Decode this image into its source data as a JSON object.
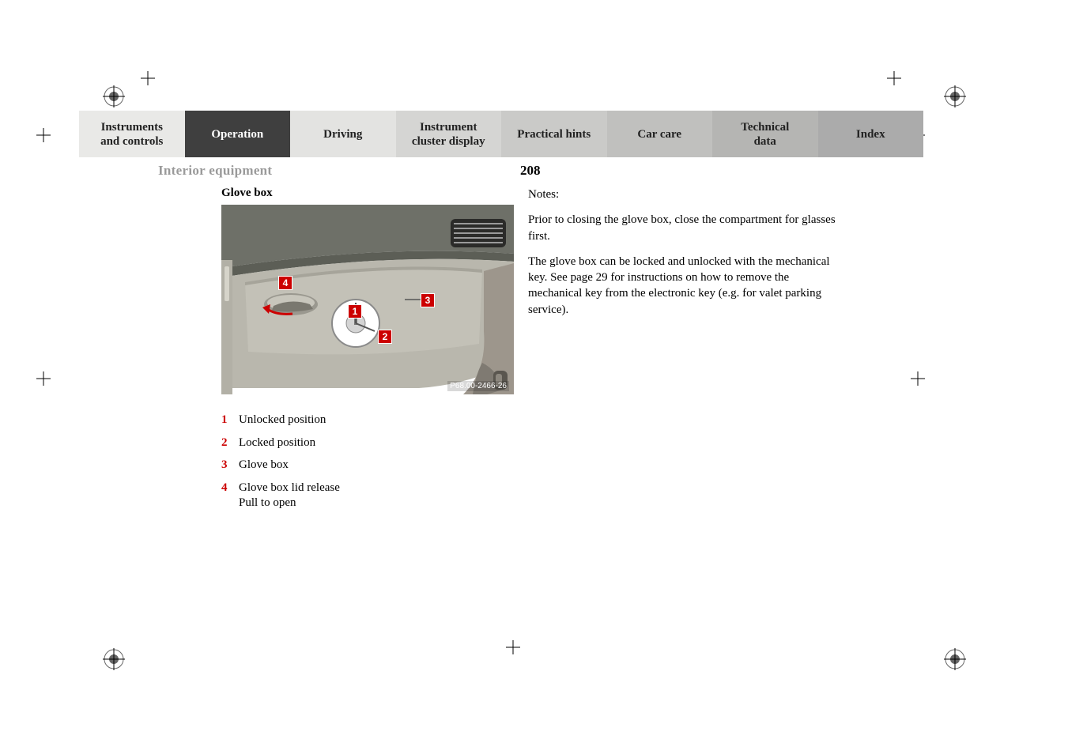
{
  "nav": {
    "tabs": [
      {
        "label": "Instruments\nand controls",
        "bg": "#e9e9e7",
        "fg": "#222222"
      },
      {
        "label": "Operation",
        "bg": "#3f3f3f",
        "fg": "#ffffff"
      },
      {
        "label": "Driving",
        "bg": "#e3e3e1",
        "fg": "#222222"
      },
      {
        "label": "Instrument\ncluster display",
        "bg": "#d5d5d3",
        "fg": "#222222"
      },
      {
        "label": "Practical hints",
        "bg": "#cacac8",
        "fg": "#222222"
      },
      {
        "label": "Car care",
        "bg": "#c0c0be",
        "fg": "#222222"
      },
      {
        "label": "Technical\ndata",
        "bg": "#b5b5b3",
        "fg": "#222222"
      },
      {
        "label": "Index",
        "bg": "#ababab",
        "fg": "#222222"
      }
    ]
  },
  "section": {
    "title": "Interior equipment",
    "page": "208"
  },
  "left": {
    "heading": "Glove box",
    "figure": {
      "callouts": {
        "1": "1",
        "2": "2",
        "3": "3",
        "4": "4"
      },
      "label": "P68.00-2466-26",
      "colors": {
        "dash_upper": "#6d6f67",
        "dash_lower": "#b8b6ac",
        "door_panel": "#9b948a",
        "air_vent": "#2b2b29",
        "lock_ring": "#9c9c9c",
        "arrow": "#cc0000",
        "callout_box": "#cc0000"
      }
    },
    "legend": [
      {
        "num": "1",
        "text": "Unlocked position"
      },
      {
        "num": "2",
        "text": "Locked position"
      },
      {
        "num": "3",
        "text": "Glove box"
      },
      {
        "num": "4",
        "text": "Glove box lid release",
        "sub": "Pull to open"
      }
    ]
  },
  "right": {
    "notes_label": "Notes:",
    "para1": "Prior to closing the glove box, close the compartment for glasses first.",
    "para2": "The glove box can be locked and unlocked with the mechanical key. See page 29 for instructions on how to remove the mechanical key from the electronic key (e.g. for valet parking service)."
  },
  "marks": {
    "crop_color": "#000000",
    "reg_outer": "#000000",
    "reg_inner_pattern": "#666666"
  }
}
